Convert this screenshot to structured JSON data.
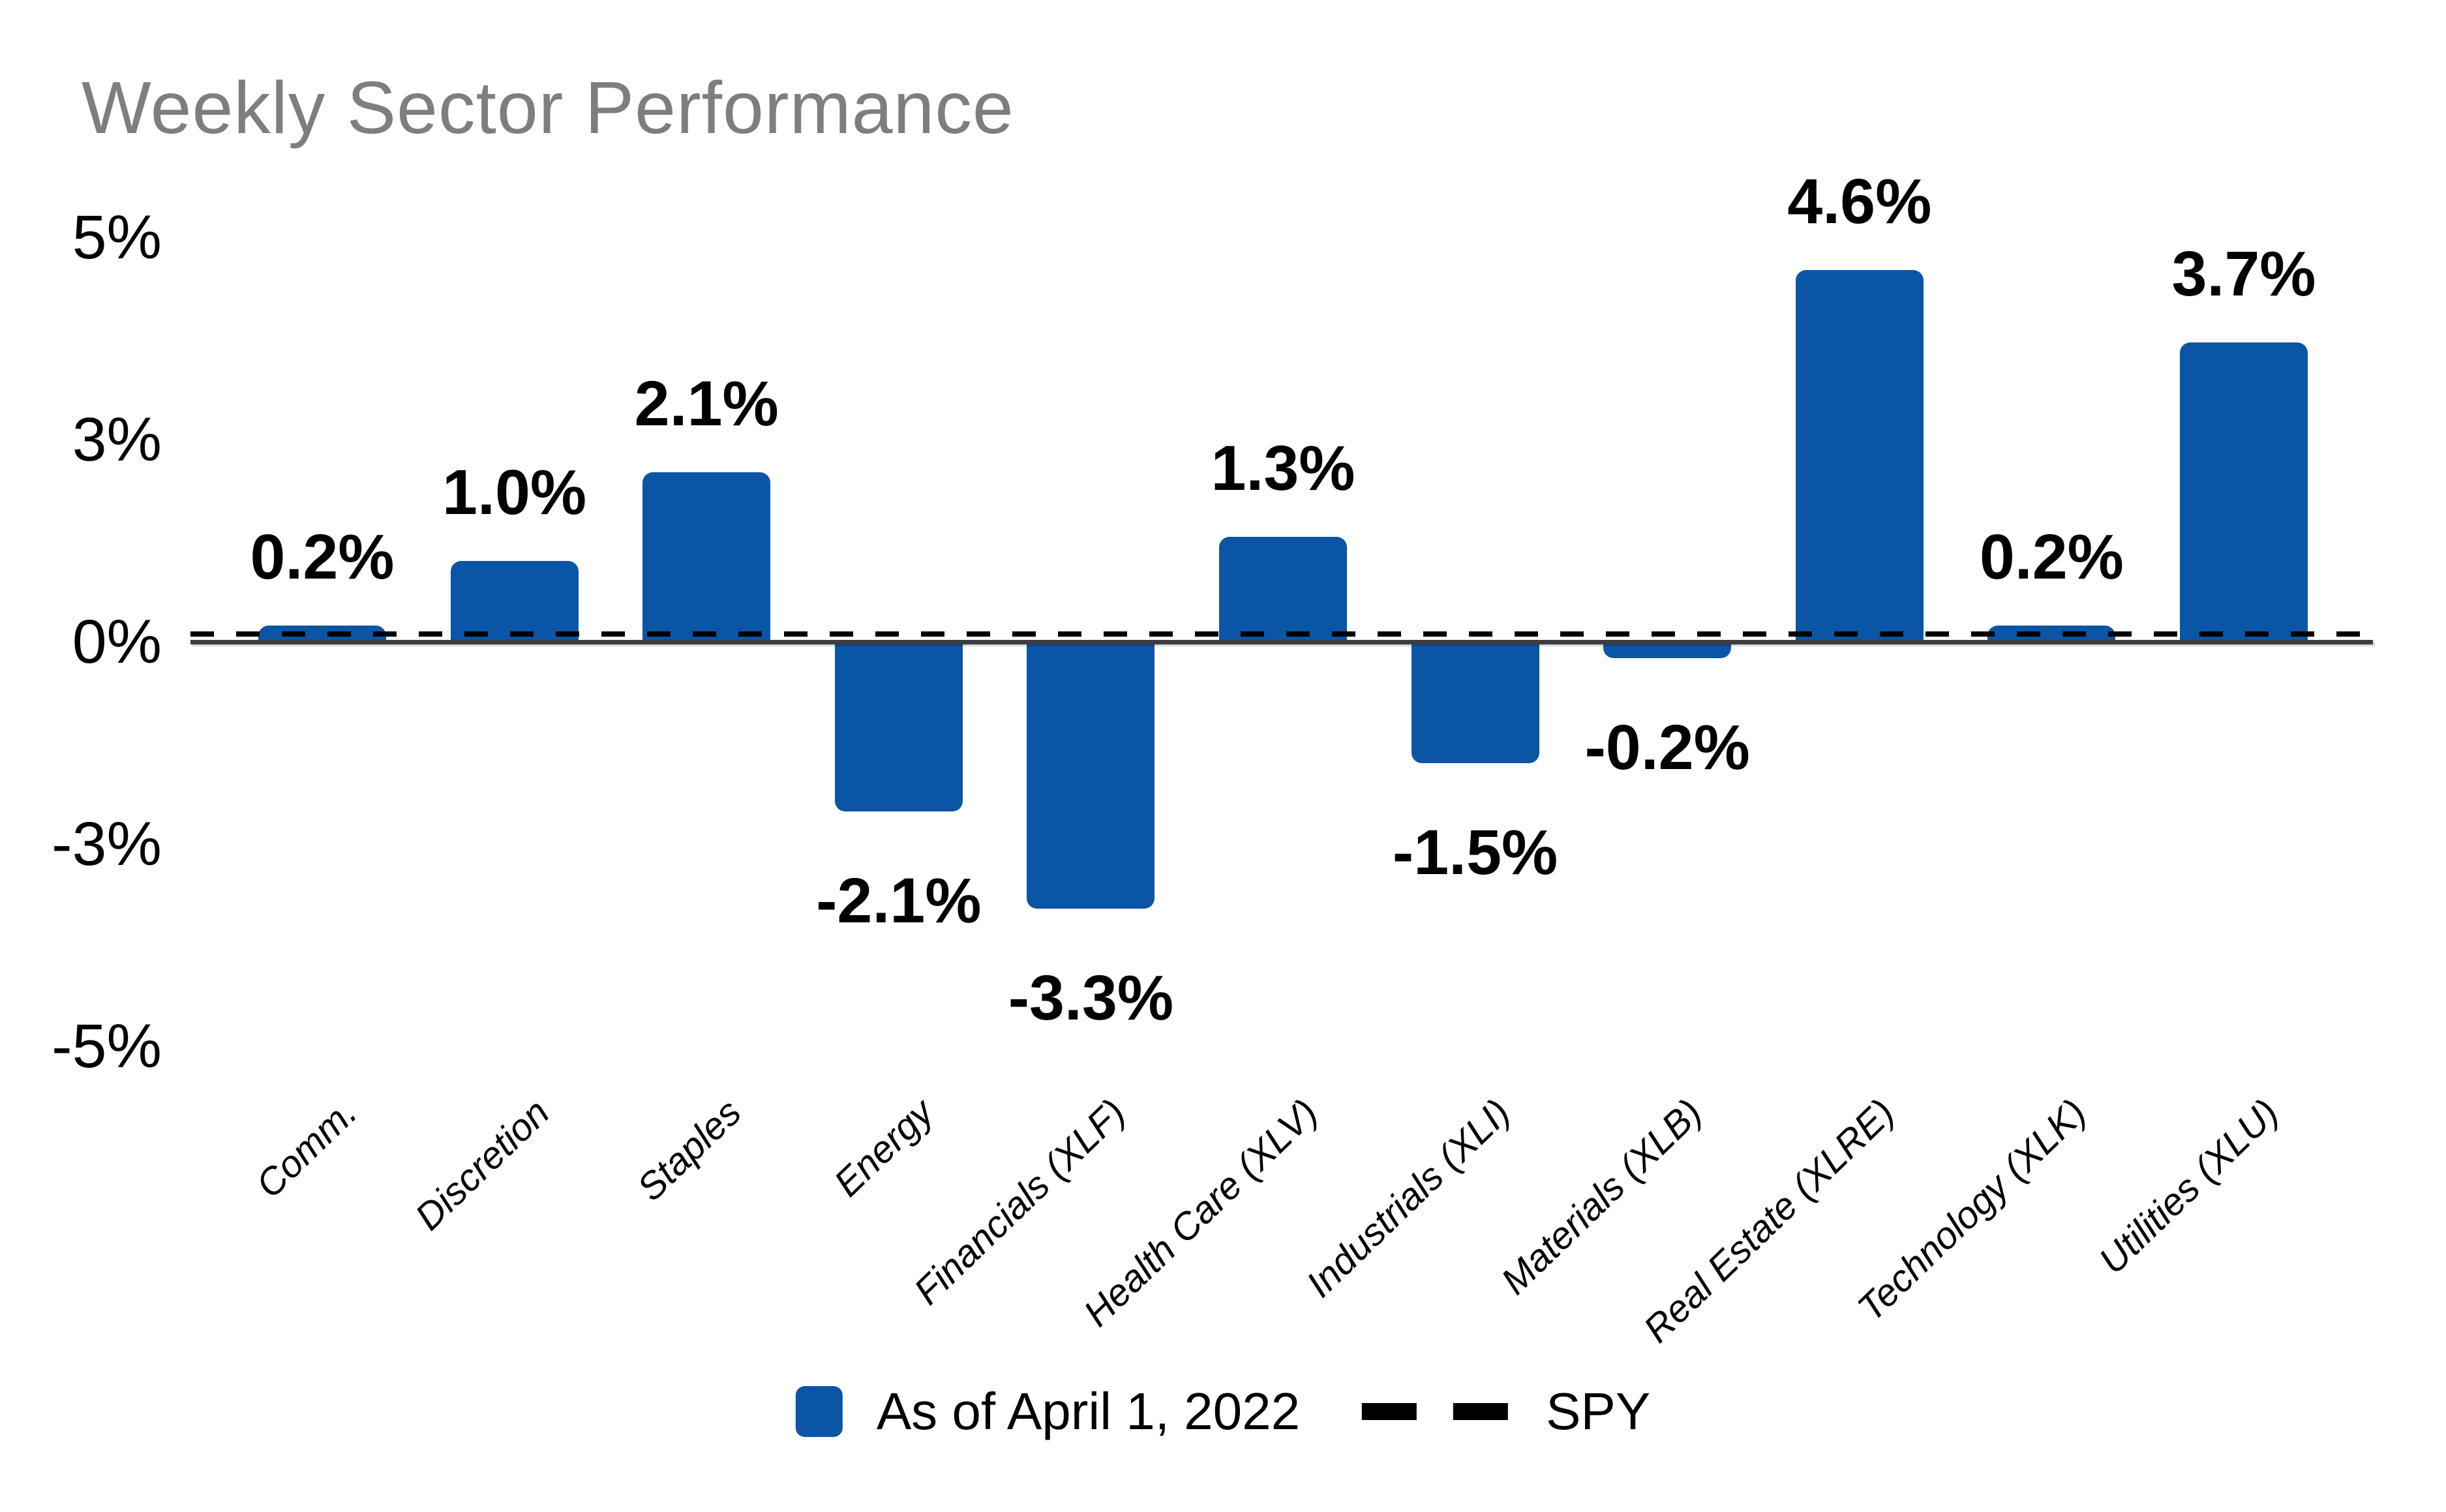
{
  "title": "Weekly Sector Performance",
  "chart_data": {
    "type": "bar",
    "title": "Weekly Sector Performance",
    "categories": [
      "Comm.",
      "Discretion",
      "Staples",
      "Energy",
      "Financials (XLF)",
      "Health Care (XLV)",
      "Industrials (XLI)",
      "Materials (XLB)",
      "Real Estate (XLRE)",
      "Technology (XLK)",
      "Utilities (XLU)"
    ],
    "series": [
      {
        "name": "As of April 1, 2022",
        "values": [
          0.2,
          1.0,
          2.1,
          -2.1,
          -3.3,
          1.3,
          -1.5,
          -0.2,
          4.6,
          0.2,
          3.7
        ]
      }
    ],
    "value_labels": [
      "0.2%",
      "1.0%",
      "2.1%",
      "-2.1%",
      "-3.3%",
      "1.3%",
      "-1.5%",
      "-0.2%",
      "4.6%",
      "0.2%",
      "3.7%"
    ],
    "y_ticks": [
      {
        "label": "5%",
        "value": 5
      },
      {
        "label": "3%",
        "value": 2.5
      },
      {
        "label": "0%",
        "value": 0
      },
      {
        "label": "-3%",
        "value": -2.5
      },
      {
        "label": "-5%",
        "value": -5
      }
    ],
    "ylim": [
      -5,
      5
    ],
    "xlabel": "",
    "ylabel": "",
    "grid": false,
    "reference_line": {
      "name": "SPY",
      "value": 0.1,
      "style": "dashed"
    },
    "legend": {
      "position": "bottom-center",
      "series_label": "As of April 1, 2022",
      "reference_label": "SPY"
    },
    "colors": {
      "bar": "#0a55a6",
      "title_text": "#7e7e7e",
      "axis_line": "#3d3d3d",
      "reference_line": "#000000",
      "label_text": "#000000"
    }
  }
}
